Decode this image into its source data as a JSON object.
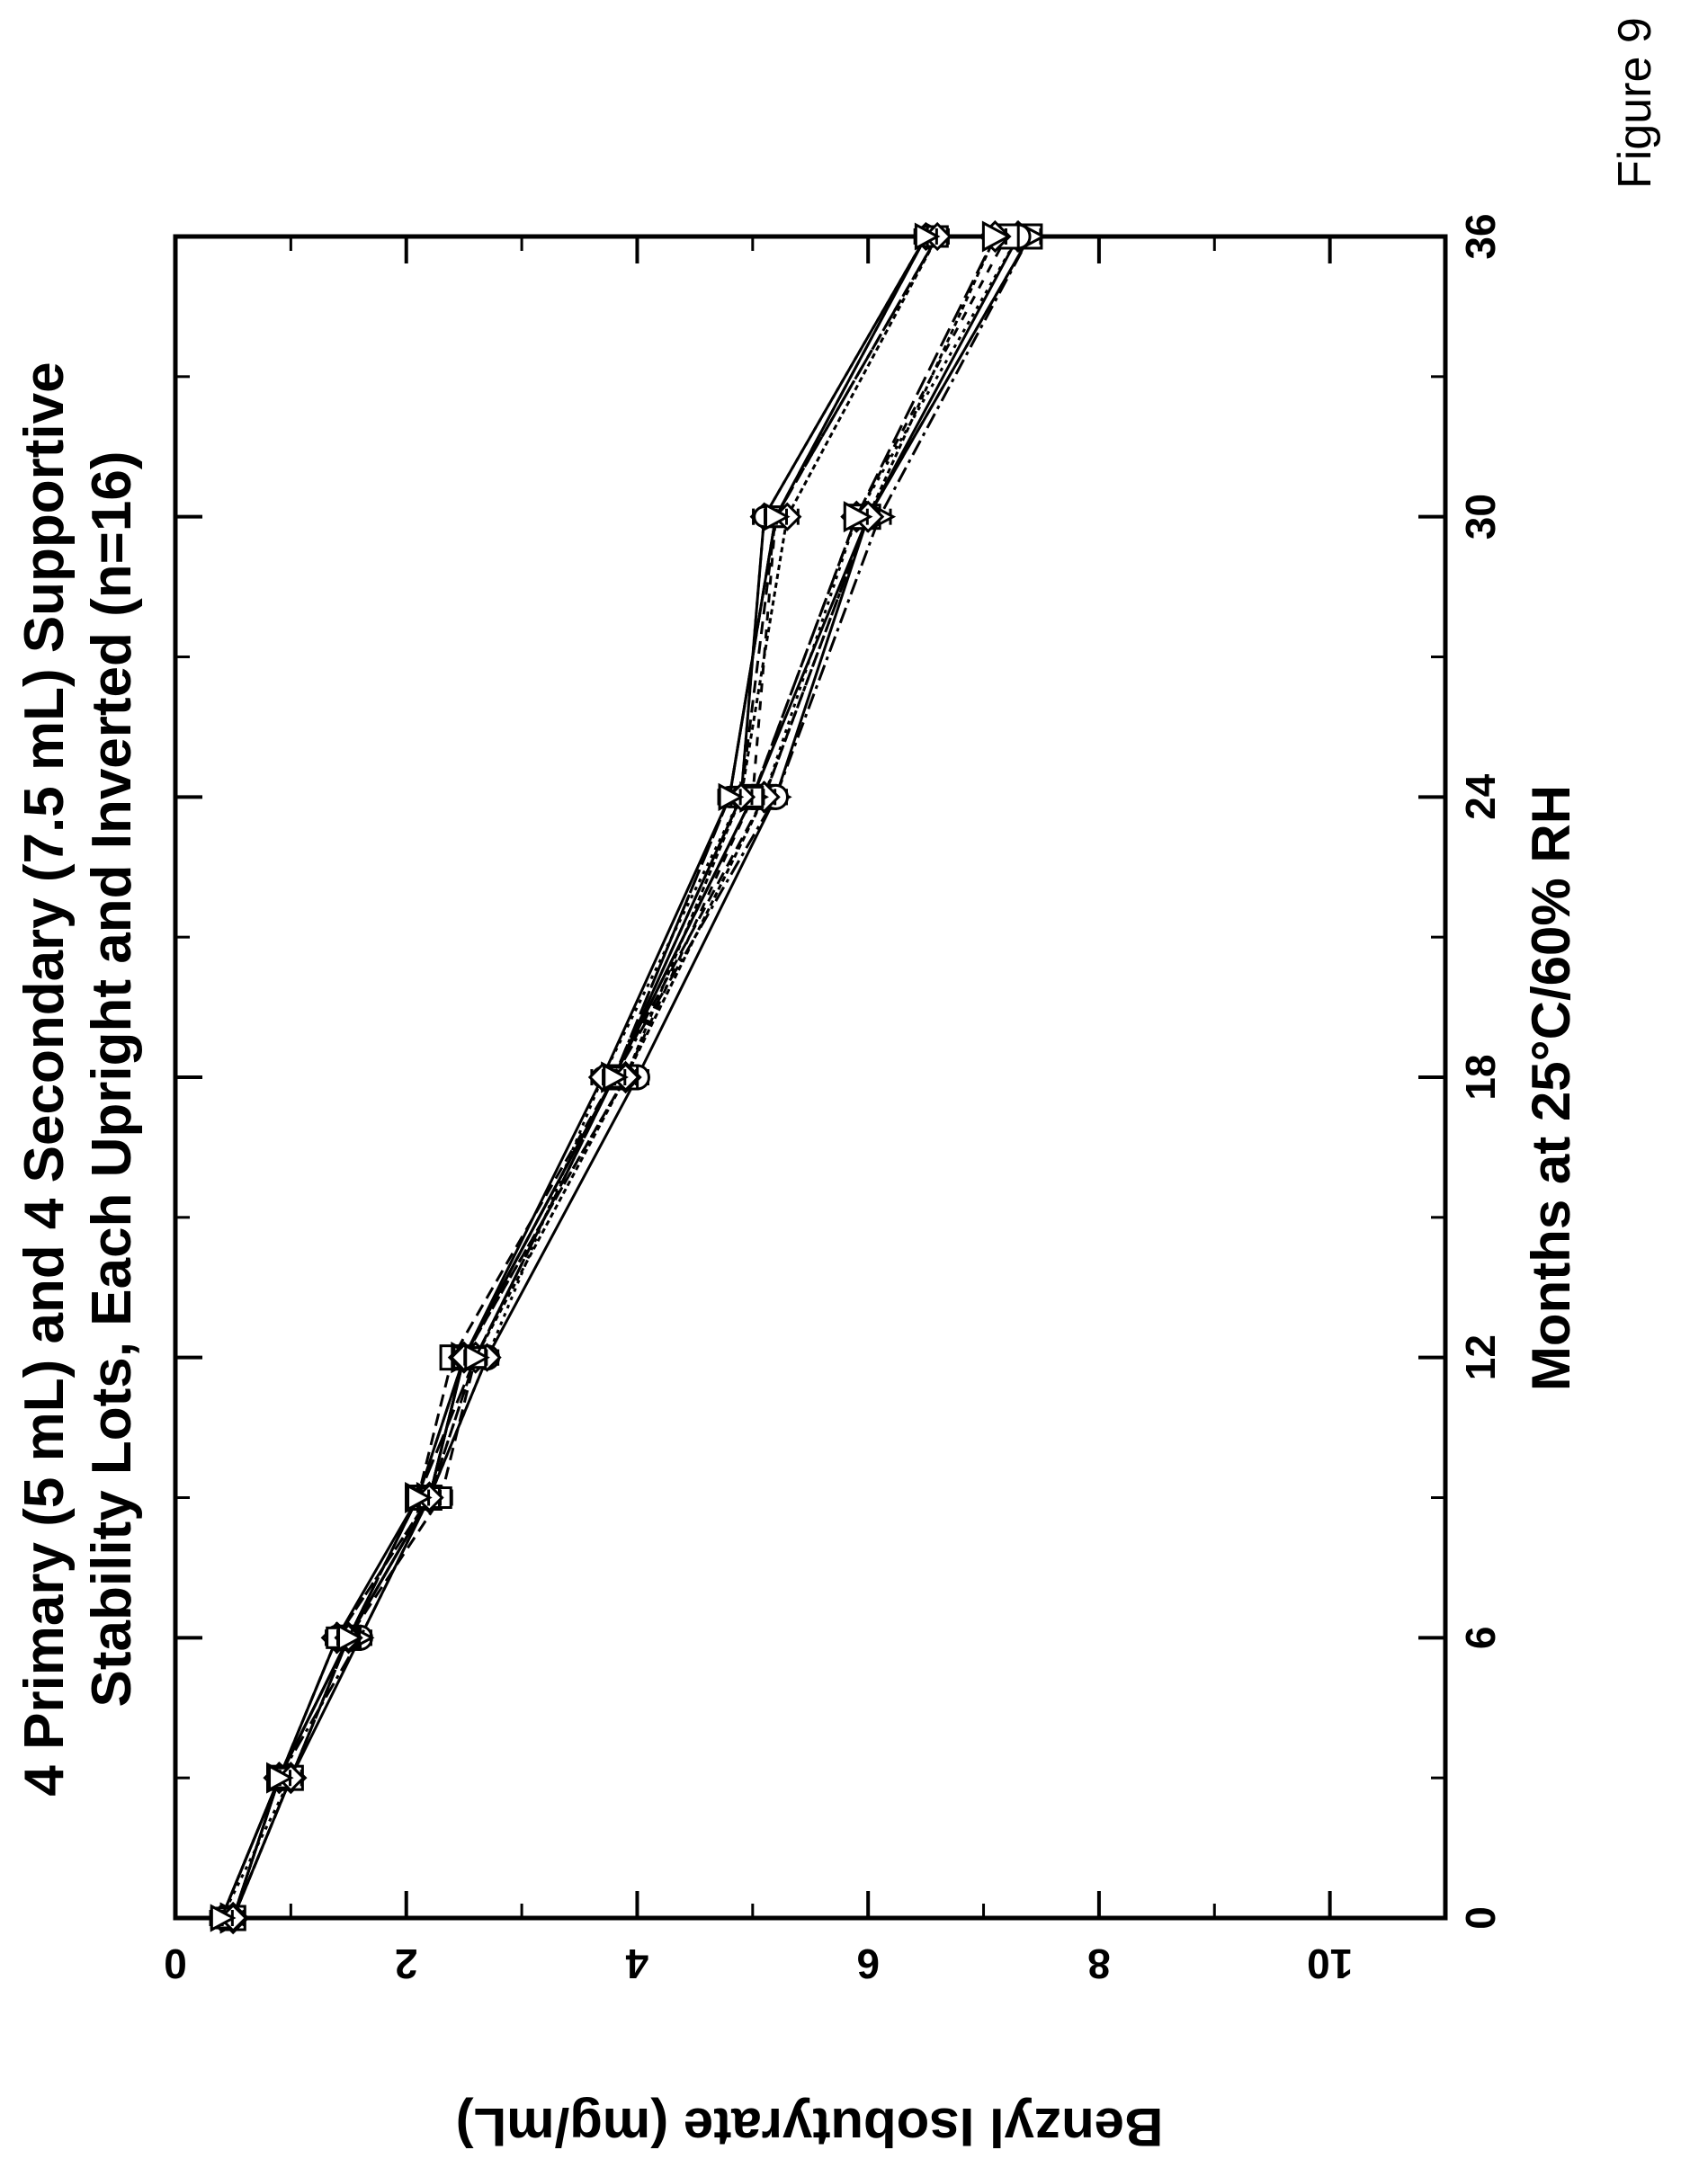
{
  "figure_label": "Figure 9",
  "chart_data": {
    "type": "line",
    "title_line1": "4 Primary (5 mL) and 4 Secondary (7.5 mL) Supportive",
    "title_line2": "Stability Lots, Each Upright and Inverted (n=16)",
    "xlabel": "Months at 25°C/60% RH",
    "ylabel": "Benzyl Isobutyrate (mg/mL)",
    "xlim": [
      0,
      36
    ],
    "ylim": [
      0,
      11
    ],
    "x_ticks": [
      0,
      6,
      12,
      18,
      24,
      30,
      36
    ],
    "y_ticks": [
      0,
      2,
      4,
      6,
      8,
      10
    ],
    "grid": false,
    "orientation_note": "rotated 90 degrees counter-clockwise",
    "x": [
      0,
      3,
      6,
      9,
      12,
      18,
      24,
      30,
      36
    ],
    "series": [
      {
        "values": [
          0.5,
          0.9,
          1.4,
          2.1,
          2.5,
          3.8,
          5.0,
          6.0,
          7.4
        ]
      },
      {
        "values": [
          0.5,
          0.9,
          1.5,
          2.1,
          2.4,
          3.8,
          5.1,
          6.0,
          7.4
        ]
      },
      {
        "values": [
          0.5,
          1.0,
          1.5,
          2.2,
          2.5,
          3.9,
          5.1,
          5.9,
          7.3
        ]
      },
      {
        "values": [
          0.5,
          0.9,
          1.5,
          2.2,
          2.5,
          3.8,
          5.2,
          6.1,
          7.4
        ]
      },
      {
        "values": [
          0.5,
          1.0,
          1.6,
          2.2,
          2.7,
          4.0,
          5.2,
          6.0,
          7.3
        ]
      },
      {
        "values": [
          0.5,
          1.0,
          1.5,
          2.2,
          2.5,
          3.9,
          5.0,
          5.9,
          7.2
        ]
      },
      {
        "values": [
          0.5,
          0.9,
          1.4,
          2.2,
          2.6,
          3.9,
          5.1,
          6.0,
          7.1
        ]
      },
      {
        "values": [
          0.5,
          1.0,
          1.5,
          2.1,
          2.5,
          3.8,
          5.0,
          5.9,
          7.1
        ]
      },
      {
        "values": [
          0.4,
          0.9,
          1.5,
          2.2,
          2.5,
          3.7,
          4.8,
          5.2,
          6.5
        ]
      },
      {
        "values": [
          0.4,
          0.9,
          1.5,
          2.3,
          2.6,
          3.8,
          4.9,
          5.2,
          6.6
        ]
      },
      {
        "values": [
          0.4,
          1.0,
          1.5,
          2.2,
          2.7,
          3.7,
          4.9,
          5.1,
          6.5
        ]
      },
      {
        "values": [
          0.4,
          0.9,
          1.6,
          2.2,
          2.5,
          3.8,
          4.8,
          5.2,
          6.6
        ]
      },
      {
        "values": [
          0.5,
          0.9,
          1.5,
          2.2,
          2.5,
          3.8,
          4.9,
          5.1,
          6.5
        ]
      },
      {
        "values": [
          0.4,
          0.9,
          1.4,
          2.2,
          2.6,
          3.8,
          5.0,
          5.2,
          6.6
        ]
      },
      {
        "values": [
          0.5,
          1.0,
          1.5,
          2.2,
          2.5,
          3.9,
          4.9,
          5.3,
          6.6
        ]
      },
      {
        "values": [
          0.4,
          0.9,
          1.5,
          2.1,
          2.6,
          3.8,
          4.8,
          5.2,
          6.5
        ]
      }
    ]
  }
}
